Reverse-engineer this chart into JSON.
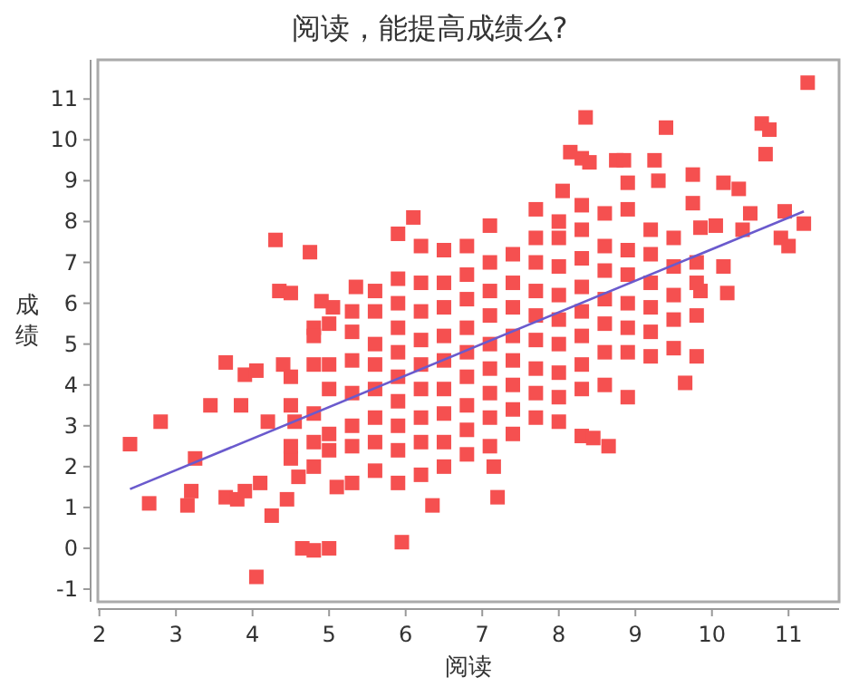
{
  "chart_data": {
    "type": "scatter",
    "title": "阅读，能提高成绩么?",
    "xlabel": "阅读",
    "ylabel": "成绩",
    "xlim": [
      1.98,
      11.66
    ],
    "ylim": [
      -1.31,
      11.96
    ],
    "xticks": [
      2,
      3,
      4,
      5,
      6,
      7,
      8,
      9,
      10,
      11
    ],
    "yticks": [
      {
        "value": -1,
        "label": "-1"
      },
      0,
      1,
      2,
      3,
      4,
      5,
      6,
      7,
      8,
      9,
      10,
      11
    ],
    "series": [
      {
        "color": "#f55050",
        "marker": "square",
        "x": [
          2.4,
          2.65,
          2.8,
          3.15,
          3.2,
          3.25,
          3.45,
          3.65,
          3.65,
          3.8,
          3.85,
          3.9,
          3.9,
          4.05,
          4.05,
          4.1,
          4.2,
          4.25,
          4.3,
          4.35,
          4.4,
          4.45,
          4.5,
          4.55,
          4.6,
          4.65,
          4.75,
          4.8,
          4.8,
          4.9,
          5.0,
          5.05,
          5.1,
          5.35,
          5.9,
          5.95,
          6.1,
          6.35,
          7.2,
          7.15,
          8.05,
          8.15,
          8.35,
          8.3,
          8.4,
          8.3,
          8.45,
          8.65,
          8.75,
          8.85,
          8.9,
          9.25,
          9.3,
          9.4,
          9.75,
          9.75,
          9.65,
          9.8,
          10.15,
          10.35,
          10.4,
          10.5,
          10.65,
          10.75,
          10.7,
          10.95,
          10.9,
          11.0,
          11.2,
          11.25,
          10.15,
          10.2,
          9.85,
          9.85,
          10.05,
          4.5,
          4.5,
          4.5,
          4.5,
          4.8,
          4.8,
          4.8,
          4.8,
          4.8,
          5.0,
          5.0,
          5.0,
          5.0,
          5.0,
          5.3,
          5.3,
          5.3,
          5.3,
          5.3,
          5.3,
          5.3,
          5.6,
          5.6,
          5.6,
          5.6,
          5.6,
          5.6,
          5.6,
          5.6,
          5.9,
          5.9,
          5.9,
          5.9,
          5.9,
          5.9,
          5.9,
          5.9,
          5.9,
          6.2,
          6.2,
          6.2,
          6.2,
          6.2,
          6.2,
          6.2,
          6.2,
          6.2,
          6.5,
          6.5,
          6.5,
          6.5,
          6.5,
          6.5,
          6.5,
          6.5,
          6.5,
          6.8,
          6.8,
          6.8,
          6.8,
          6.8,
          6.8,
          6.8,
          6.8,
          6.8,
          7.1,
          7.1,
          7.1,
          7.1,
          7.1,
          7.1,
          7.1,
          7.1,
          7.1,
          7.4,
          7.4,
          7.4,
          7.4,
          7.4,
          7.4,
          7.4,
          7.4,
          7.7,
          7.7,
          7.7,
          7.7,
          7.7,
          7.7,
          7.7,
          7.7,
          7.7,
          8.0,
          8.0,
          8.0,
          8.0,
          8.0,
          8.0,
          8.0,
          8.0,
          8.0,
          8.3,
          8.3,
          8.3,
          8.3,
          8.3,
          8.3,
          8.3,
          8.3,
          8.6,
          8.6,
          8.6,
          8.6,
          8.6,
          8.6,
          8.6,
          8.9,
          8.9,
          8.9,
          8.9,
          8.9,
          8.9,
          8.9,
          9.2,
          9.2,
          9.2,
          9.2,
          9.2,
          9.2,
          9.5,
          9.5,
          9.5,
          9.5,
          9.5,
          9.8,
          9.8,
          9.8
        ],
        "values": [
          2.55,
          1.1,
          3.1,
          1.05,
          1.4,
          2.2,
          3.5,
          4.55,
          1.25,
          1.2,
          3.5,
          4.25,
          1.4,
          4.35,
          -0.7,
          1.6,
          3.1,
          0.8,
          7.55,
          6.3,
          4.5,
          1.2,
          6.25,
          3.1,
          1.75,
          0.0,
          7.25,
          -0.05,
          5.4,
          6.05,
          0.0,
          5.9,
          1.5,
          6.4,
          7.7,
          0.15,
          8.1,
          1.05,
          1.25,
          2.0,
          8.75,
          9.7,
          10.55,
          9.55,
          9.45,
          2.75,
          2.7,
          2.5,
          9.5,
          9.5,
          8.95,
          9.5,
          9.0,
          10.3,
          9.15,
          8.45,
          4.05,
          4.7,
          8.95,
          8.8,
          7.8,
          8.2,
          10.4,
          10.25,
          9.65,
          8.25,
          7.6,
          7.4,
          7.95,
          11.4,
          6.9,
          6.25,
          6.3,
          7.85,
          7.9,
          2.2,
          2.5,
          3.5,
          4.2,
          2.0,
          2.6,
          3.3,
          4.5,
          5.2,
          2.4,
          2.8,
          3.9,
          4.5,
          5.5,
          1.6,
          2.5,
          3.0,
          3.8,
          4.6,
          5.3,
          5.8,
          1.9,
          2.6,
          3.2,
          3.9,
          4.5,
          5.0,
          5.8,
          6.3,
          1.6,
          2.4,
          3.0,
          3.6,
          4.2,
          4.8,
          5.4,
          6.0,
          6.6,
          1.8,
          2.6,
          3.2,
          3.9,
          4.5,
          5.1,
          5.8,
          6.5,
          7.4,
          2.0,
          2.6,
          3.3,
          3.9,
          4.6,
          5.2,
          5.9,
          6.5,
          7.3,
          2.3,
          2.9,
          3.5,
          4.2,
          4.8,
          5.4,
          6.1,
          6.7,
          7.4,
          2.5,
          3.2,
          3.8,
          4.4,
          5.0,
          5.7,
          6.3,
          7.0,
          7.9,
          2.8,
          3.4,
          4.0,
          4.6,
          5.2,
          5.9,
          6.5,
          7.2,
          3.2,
          3.8,
          4.4,
          5.1,
          5.7,
          6.3,
          7.0,
          7.6,
          8.3,
          3.1,
          3.7,
          4.3,
          5.0,
          5.6,
          6.2,
          6.9,
          7.6,
          8.0,
          3.9,
          4.5,
          5.2,
          5.8,
          6.4,
          7.1,
          7.8,
          8.4,
          4.0,
          4.8,
          5.5,
          6.1,
          6.8,
          7.4,
          8.2,
          3.7,
          4.8,
          5.4,
          6.0,
          6.7,
          7.3,
          8.3,
          4.7,
          5.3,
          5.9,
          6.5,
          7.2,
          7.8,
          4.9,
          5.6,
          6.2,
          6.9,
          7.6,
          5.7,
          6.5,
          7.0
        ]
      },
      {
        "type": "line",
        "color": "#6a5acd",
        "x": [
          2.4,
          11.2
        ],
        "values": [
          1.45,
          8.25
        ]
      }
    ]
  }
}
